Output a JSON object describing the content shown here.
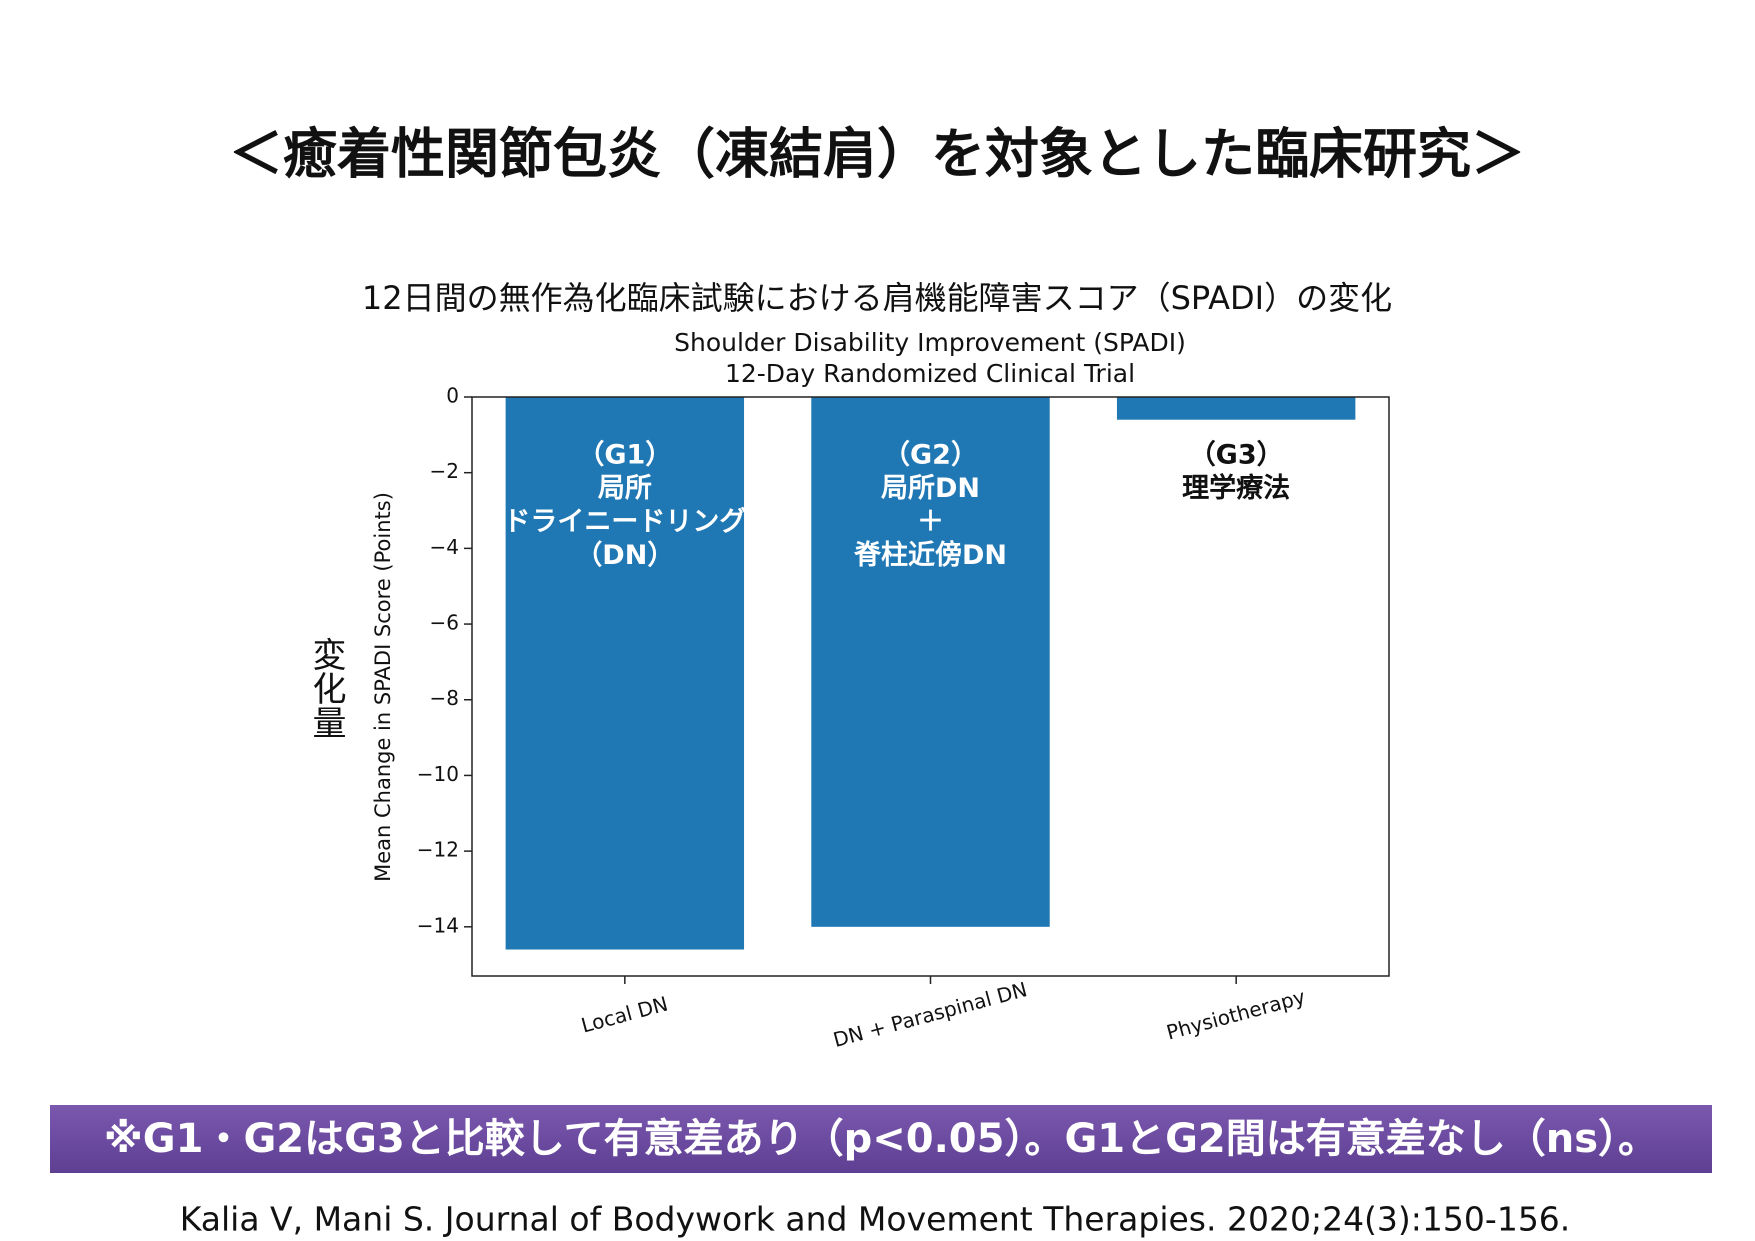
{
  "header": {
    "title": "＜癒着性関節包炎（凍結肩）を対象とした臨床研究＞"
  },
  "chart_data": {
    "type": "bar",
    "title": "12日間の無作為化臨床試験における肩機能障害スコア（SPADI）の変化",
    "subtitle": [
      "Shoulder Disability Improvement (SPADI)",
      "12-Day Randomized Clinical Trial"
    ],
    "y_label": "Mean Change in SPADI Score (Points)",
    "y_label_ja": "変化量",
    "categories": [
      "Local DN",
      "DN + Paraspinal DN",
      "Physiotherapy"
    ],
    "values": [
      -14.6,
      -14.0,
      -0.6
    ],
    "color": "#1f77b4",
    "ylim": [
      -15.3,
      0
    ],
    "yticks": [
      0,
      {
        "value": -2,
        "label": "−2"
      },
      {
        "value": -4,
        "label": "−4"
      },
      {
        "value": -6,
        "label": "−6"
      },
      {
        "value": -8,
        "label": "−8"
      },
      {
        "value": -10,
        "label": "−10"
      },
      {
        "value": -12,
        "label": "−12"
      },
      {
        "value": -14,
        "label": "−14"
      }
    ],
    "annotations": [
      {
        "lines": [
          "（G1）",
          "局所",
          "ドライニードリング",
          "（DN）"
        ],
        "color": "#ffffff"
      },
      {
        "lines": [
          "（G2）",
          "局所DN",
          "＋",
          "脊柱近傍DN"
        ],
        "color": "#ffffff"
      },
      {
        "lines": [
          "（G3）",
          "理学療法"
        ],
        "color": "#111111"
      }
    ]
  },
  "footer": {
    "note": "※G1・G2はG3と比較して有意差あり（p<0.05）。G1とG2間は有意差なし（ns）。",
    "citation": "Kalia V, Mani S. Journal of Bodywork and Movement Therapies. 2020;24(3):150-156."
  }
}
